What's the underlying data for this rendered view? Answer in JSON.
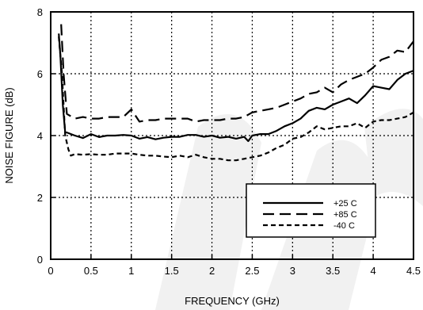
{
  "chart_data": {
    "type": "line",
    "title": "",
    "xlabel": "FREQUENCY (GHz)",
    "ylabel": "NOISE FIGURE (dB)",
    "xlim": [
      0,
      4.5
    ],
    "ylim": [
      0,
      8
    ],
    "x_ticks": [
      0,
      0.5,
      1,
      1.5,
      2,
      2.5,
      3,
      3.5,
      4,
      4.5
    ],
    "x_tick_labels": [
      "0",
      "0.5",
      "1",
      "1.5",
      "2",
      "2.5",
      "3",
      "3.5",
      "4",
      "4.5"
    ],
    "y_ticks": [
      0,
      2,
      4,
      6,
      8
    ],
    "y_tick_labels": [
      "0",
      "2",
      "4",
      "6",
      "8"
    ],
    "grid": true,
    "grid_style": "dotted",
    "legend_position": "lower-right",
    "series": [
      {
        "name": "+25 C",
        "line_style": "solid",
        "color": "#000000",
        "points": [
          [
            0.1,
            7.3
          ],
          [
            0.12,
            6.6
          ],
          [
            0.15,
            5.0
          ],
          [
            0.18,
            4.1
          ],
          [
            0.2,
            4.1
          ],
          [
            0.3,
            4.0
          ],
          [
            0.4,
            3.92
          ],
          [
            0.5,
            4.05
          ],
          [
            0.6,
            3.95
          ],
          [
            0.7,
            4.0
          ],
          [
            0.8,
            4.0
          ],
          [
            0.9,
            4.02
          ],
          [
            1.0,
            4.0
          ],
          [
            1.1,
            3.9
          ],
          [
            1.2,
            3.95
          ],
          [
            1.3,
            3.88
          ],
          [
            1.4,
            3.93
          ],
          [
            1.5,
            3.96
          ],
          [
            1.6,
            3.96
          ],
          [
            1.7,
            4.02
          ],
          [
            1.8,
            4.02
          ],
          [
            1.9,
            3.96
          ],
          [
            2.0,
            4.0
          ],
          [
            2.1,
            3.93
          ],
          [
            2.2,
            3.96
          ],
          [
            2.3,
            3.9
          ],
          [
            2.4,
            3.96
          ],
          [
            2.45,
            3.82
          ],
          [
            2.5,
            4.0
          ],
          [
            2.6,
            4.05
          ],
          [
            2.7,
            4.05
          ],
          [
            2.8,
            4.15
          ],
          [
            2.9,
            4.3
          ],
          [
            3.0,
            4.4
          ],
          [
            3.1,
            4.55
          ],
          [
            3.2,
            4.8
          ],
          [
            3.3,
            4.9
          ],
          [
            3.4,
            4.85
          ],
          [
            3.5,
            5.0
          ],
          [
            3.6,
            5.1
          ],
          [
            3.7,
            5.2
          ],
          [
            3.8,
            5.05
          ],
          [
            3.9,
            5.3
          ],
          [
            4.0,
            5.6
          ],
          [
            4.1,
            5.55
          ],
          [
            4.2,
            5.5
          ],
          [
            4.3,
            5.8
          ],
          [
            4.4,
            6.0
          ],
          [
            4.5,
            6.1
          ]
        ]
      },
      {
        "name": "+85 C",
        "line_style": "dashed",
        "color": "#000000",
        "points": [
          [
            0.13,
            7.6
          ],
          [
            0.16,
            6.0
          ],
          [
            0.2,
            4.7
          ],
          [
            0.3,
            4.55
          ],
          [
            0.4,
            4.6
          ],
          [
            0.5,
            4.55
          ],
          [
            0.6,
            4.55
          ],
          [
            0.7,
            4.6
          ],
          [
            0.8,
            4.6
          ],
          [
            0.9,
            4.6
          ],
          [
            1.0,
            4.85
          ],
          [
            1.1,
            4.45
          ],
          [
            1.2,
            4.5
          ],
          [
            1.3,
            4.5
          ],
          [
            1.4,
            4.55
          ],
          [
            1.5,
            4.55
          ],
          [
            1.6,
            4.55
          ],
          [
            1.7,
            4.55
          ],
          [
            1.8,
            4.45
          ],
          [
            1.9,
            4.5
          ],
          [
            2.0,
            4.5
          ],
          [
            2.1,
            4.5
          ],
          [
            2.2,
            4.55
          ],
          [
            2.3,
            4.55
          ],
          [
            2.4,
            4.6
          ],
          [
            2.5,
            4.75
          ],
          [
            2.6,
            4.8
          ],
          [
            2.7,
            4.85
          ],
          [
            2.8,
            4.9
          ],
          [
            2.9,
            5.0
          ],
          [
            3.0,
            5.1
          ],
          [
            3.1,
            5.2
          ],
          [
            3.2,
            5.35
          ],
          [
            3.3,
            5.4
          ],
          [
            3.4,
            5.55
          ],
          [
            3.5,
            5.4
          ],
          [
            3.6,
            5.65
          ],
          [
            3.7,
            5.8
          ],
          [
            3.8,
            5.9
          ],
          [
            3.9,
            6.0
          ],
          [
            4.0,
            6.2
          ],
          [
            4.1,
            6.45
          ],
          [
            4.2,
            6.55
          ],
          [
            4.3,
            6.75
          ],
          [
            4.4,
            6.7
          ],
          [
            4.5,
            7.05
          ]
        ]
      },
      {
        "name": "-40 C",
        "line_style": "short-dashed",
        "color": "#000000",
        "points": [
          [
            0.1,
            7.2
          ],
          [
            0.14,
            6.0
          ],
          [
            0.18,
            4.0
          ],
          [
            0.22,
            3.55
          ],
          [
            0.25,
            3.35
          ],
          [
            0.3,
            3.4
          ],
          [
            0.4,
            3.38
          ],
          [
            0.5,
            3.4
          ],
          [
            0.6,
            3.38
          ],
          [
            0.7,
            3.38
          ],
          [
            0.8,
            3.42
          ],
          [
            0.9,
            3.42
          ],
          [
            1.0,
            3.42
          ],
          [
            1.1,
            3.38
          ],
          [
            1.2,
            3.35
          ],
          [
            1.3,
            3.35
          ],
          [
            1.4,
            3.32
          ],
          [
            1.5,
            3.3
          ],
          [
            1.6,
            3.35
          ],
          [
            1.7,
            3.3
          ],
          [
            1.8,
            3.38
          ],
          [
            1.9,
            3.3
          ],
          [
            2.0,
            3.25
          ],
          [
            2.1,
            3.25
          ],
          [
            2.2,
            3.2
          ],
          [
            2.3,
            3.2
          ],
          [
            2.4,
            3.25
          ],
          [
            2.5,
            3.3
          ],
          [
            2.6,
            3.35
          ],
          [
            2.7,
            3.45
          ],
          [
            2.8,
            3.6
          ],
          [
            2.9,
            3.7
          ],
          [
            3.0,
            3.9
          ],
          [
            3.1,
            3.95
          ],
          [
            3.2,
            4.1
          ],
          [
            3.3,
            4.3
          ],
          [
            3.4,
            4.2
          ],
          [
            3.5,
            4.25
          ],
          [
            3.6,
            4.3
          ],
          [
            3.7,
            4.3
          ],
          [
            3.8,
            4.4
          ],
          [
            3.9,
            4.25
          ],
          [
            4.0,
            4.45
          ],
          [
            4.1,
            4.5
          ],
          [
            4.2,
            4.5
          ],
          [
            4.3,
            4.55
          ],
          [
            4.4,
            4.6
          ],
          [
            4.5,
            4.75
          ]
        ]
      }
    ]
  }
}
